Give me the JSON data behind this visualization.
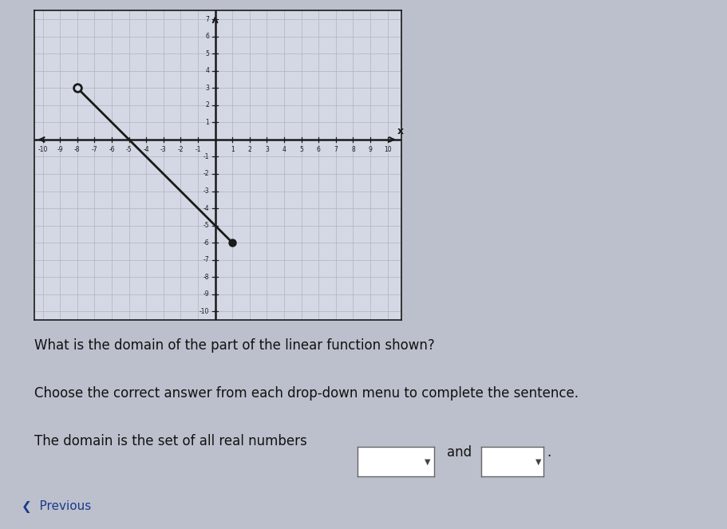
{
  "line_x": [
    -8,
    1
  ],
  "line_y": [
    3,
    -6
  ],
  "open_point": [
    -8,
    3
  ],
  "closed_point": [
    1,
    -6
  ],
  "xlim": [
    -10.5,
    10.8
  ],
  "ylim": [
    -10.5,
    7.5
  ],
  "xticks": [
    -10,
    -9,
    -8,
    -7,
    -6,
    -5,
    -4,
    -3,
    -2,
    -1,
    1,
    2,
    3,
    4,
    5,
    6,
    7,
    8,
    9,
    10
  ],
  "yticks": [
    -10,
    -9,
    -8,
    -7,
    -6,
    -5,
    -4,
    -3,
    -2,
    -1,
    1,
    2,
    3,
    4,
    5,
    6,
    7
  ],
  "line_color": "#1a1a1a",
  "grid_color": "#b0b4c0",
  "panel_bg": "#d4d8e4",
  "axis_color": "#1a1a1a",
  "title_question": "What is the domain of the part of the linear function shown?",
  "instruction": "Choose the correct answer from each drop-down menu to complete the sentence.",
  "sentence_part1": "The domain is the set of all real numbers",
  "sentence_part2": "and",
  "previous_text": "Previous",
  "text_color": "#111111",
  "outer_bg": "#bcc0cc"
}
